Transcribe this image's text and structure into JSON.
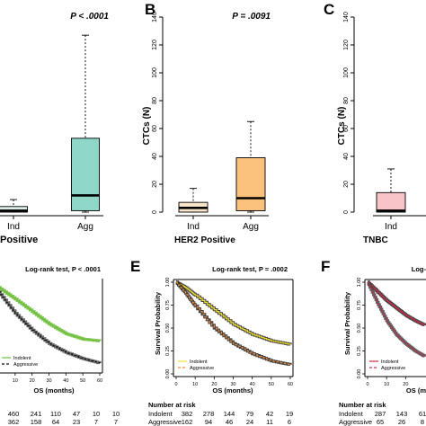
{
  "panels": {
    "A": {
      "letter": "",
      "pvalue": "P < .0001",
      "subtitle": "Positive",
      "ylabel": ""
    },
    "B": {
      "letter": "B",
      "pvalue": "P = .0091",
      "subtitle": "HER2 Positive",
      "ylabel": "CTCs (N)"
    },
    "C": {
      "letter": "C",
      "pvalue": "",
      "subtitle": "TNBC",
      "ylabel": "CTCs (N)"
    },
    "D": {
      "letter": "",
      "logrank": "Log-rank test, P < .0001",
      "xlabel": "OS (months)",
      "risk_rows": [
        {
          "label": "",
          "values": [
            "460",
            "241",
            "110",
            "47",
            "10",
            "10"
          ]
        },
        {
          "label": "",
          "values": [
            "362",
            "158",
            "64",
            "23",
            "7",
            "7"
          ]
        }
      ]
    },
    "E": {
      "letter": "E",
      "logrank": "Log-rank test, P = .0002",
      "xlabel": "OS (months)",
      "ylabel": "Survival Probability",
      "risk_title": "Number at risk",
      "risk_rows": [
        {
          "label": "Indolent",
          "values": [
            "382",
            "278",
            "144",
            "79",
            "42",
            "19"
          ]
        },
        {
          "label": "Aggressive",
          "values": [
            "162",
            "94",
            "46",
            "24",
            "11",
            "6"
          ]
        }
      ]
    },
    "F": {
      "letter": "F",
      "logrank": "Log-",
      "xlabel": "OS (m",
      "ylabel": "Survival Probability",
      "risk_title": "Number at risk",
      "risk_rows": [
        {
          "label": "Indolent",
          "values": [
            "287",
            "143",
            "61"
          ]
        },
        {
          "label": "Aggressive",
          "values": [
            "65",
            "26",
            "8"
          ]
        }
      ]
    }
  },
  "colors": {
    "ind_a": "#dcf0e8",
    "agg_a": "#8fd8c8",
    "ind_b": "#f8e4c8",
    "agg_b": "#fac27c",
    "ind_c": "#f8c4c8",
    "km_green": "#6fbf3c",
    "km_yellow": "#f2e12c",
    "km_orange": "#f08c3c",
    "km_red": "#c0304a"
  },
  "chart_data": [
    {
      "type": "box",
      "panel": "A",
      "categories": [
        "Ind",
        "Agg"
      ],
      "ylim": [
        0,
        140
      ],
      "boxes": [
        {
          "name": "Ind",
          "whisker_low": 0,
          "q1": 0,
          "median": 1,
          "q3": 4,
          "whisker_high": 9
        },
        {
          "name": "Agg",
          "whisker_low": 0,
          "q1": 1,
          "median": 12,
          "q3": 53,
          "whisker_high": 127
        }
      ]
    },
    {
      "type": "box",
      "panel": "B",
      "categories": [
        "Ind",
        "Agg"
      ],
      "ylim": [
        0,
        140
      ],
      "yticks": [
        "0",
        "20",
        "40",
        "60",
        "80",
        "100",
        "120",
        "140"
      ],
      "boxes": [
        {
          "name": "Ind",
          "whisker_low": 0,
          "q1": 0,
          "median": 3,
          "q3": 7,
          "whisker_high": 17
        },
        {
          "name": "Agg",
          "whisker_low": 0,
          "q1": 1,
          "median": 10,
          "q3": 39,
          "whisker_high": 65
        }
      ]
    },
    {
      "type": "box",
      "panel": "C",
      "categories": [
        "Ind"
      ],
      "ylim": [
        0,
        140
      ],
      "yticks": [
        "0",
        "20",
        "40",
        "60",
        "80",
        "100",
        "120",
        "140"
      ],
      "boxes": [
        {
          "name": "Ind",
          "whisker_low": 0,
          "q1": 0,
          "median": 1,
          "q3": 14,
          "whisker_high": 31
        }
      ]
    },
    {
      "type": "line",
      "panel": "D",
      "xlabel": "OS (months)",
      "xlim": [
        0,
        60
      ],
      "ylim": [
        0,
        1
      ],
      "xticks": [
        "10",
        "20",
        "30",
        "40",
        "50",
        "60"
      ],
      "legend": [
        "Indolent",
        "Aggressive"
      ],
      "series": [
        {
          "name": "Indolent",
          "x": [
            0,
            10,
            20,
            30,
            40,
            50,
            60
          ],
          "y": [
            0.93,
            0.8,
            0.66,
            0.52,
            0.41,
            0.35,
            0.33
          ]
        },
        {
          "name": "Aggressive",
          "x": [
            0,
            10,
            20,
            30,
            40,
            50,
            60
          ],
          "y": [
            0.88,
            0.64,
            0.45,
            0.3,
            0.2,
            0.13,
            0.08
          ]
        }
      ]
    },
    {
      "type": "line",
      "panel": "E",
      "xlabel": "OS (months)",
      "ylabel": "Survival Probability",
      "xlim": [
        0,
        60
      ],
      "ylim": [
        0,
        1
      ],
      "xticks": [
        "0",
        "10",
        "20",
        "30",
        "40",
        "50",
        "60"
      ],
      "yticks": [
        "0.00",
        "0.25",
        "0.50",
        "0.75",
        "1.00"
      ],
      "legend": [
        "Indolent",
        "Aggressive"
      ],
      "series": [
        {
          "name": "Indolent",
          "x": [
            0,
            5,
            10,
            20,
            30,
            40,
            50,
            60
          ],
          "y": [
            1.0,
            0.94,
            0.86,
            0.7,
            0.54,
            0.43,
            0.36,
            0.32
          ]
        },
        {
          "name": "Aggressive",
          "x": [
            0,
            5,
            10,
            20,
            30,
            40,
            50,
            60
          ],
          "y": [
            1.0,
            0.88,
            0.74,
            0.5,
            0.33,
            0.22,
            0.14,
            0.1
          ]
        }
      ]
    },
    {
      "type": "line",
      "panel": "F",
      "xlabel": "OS (m",
      "ylabel": "Survival Probability",
      "xlim": [
        0,
        60
      ],
      "ylim": [
        0,
        1
      ],
      "xticks": [
        "0",
        "10",
        "20"
      ],
      "yticks": [
        "0.00",
        "0.25",
        "0.50",
        "0.75",
        "1.00"
      ],
      "legend": [
        "Indolent",
        "Aggressive"
      ],
      "series": [
        {
          "name": "Indolent",
          "x": [
            0,
            5,
            10,
            15,
            20,
            25,
            30
          ],
          "y": [
            1.0,
            0.9,
            0.8,
            0.72,
            0.64,
            0.58,
            0.53
          ]
        },
        {
          "name": "Aggressive",
          "x": [
            0,
            5,
            10,
            15,
            20,
            25,
            30
          ],
          "y": [
            1.0,
            0.78,
            0.58,
            0.43,
            0.33,
            0.25,
            0.19
          ]
        }
      ]
    }
  ]
}
